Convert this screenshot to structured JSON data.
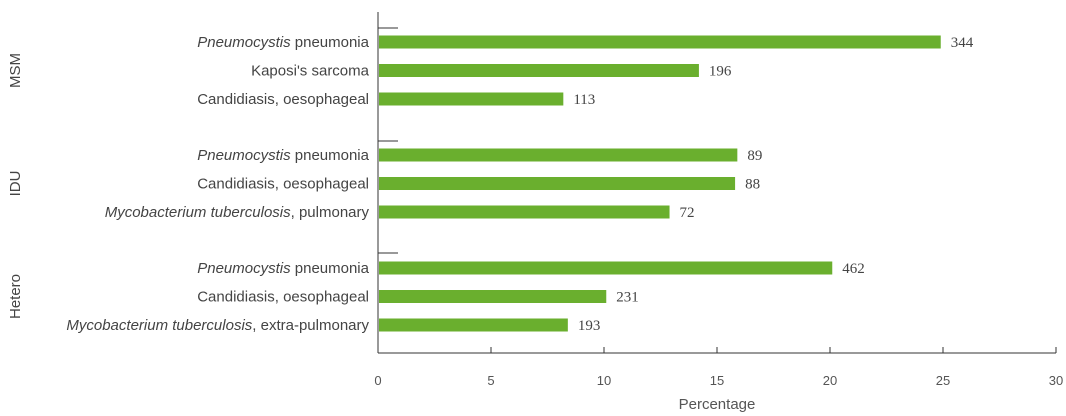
{
  "chart_data": {
    "type": "bar",
    "orientation": "horizontal",
    "xlabel": "Percentage",
    "xlim": [
      0,
      30
    ],
    "xticks": [
      0,
      5,
      10,
      15,
      20,
      25,
      30
    ],
    "bar_color": "#6aaf2e",
    "grid": false,
    "groups": [
      {
        "name": "MSM",
        "bars": [
          {
            "label_italic": "Pneumocystis",
            "label_rest": " pneumonia",
            "value": 24.9,
            "count": "344"
          },
          {
            "label_italic": "",
            "label_rest": "Kaposi's sarcoma",
            "value": 14.2,
            "count": "196"
          },
          {
            "label_italic": "",
            "label_rest": "Candidiasis, oesophageal",
            "value": 8.2,
            "count": "113"
          }
        ]
      },
      {
        "name": "IDU",
        "bars": [
          {
            "label_italic": "Pneumocystis",
            "label_rest": " pneumonia",
            "value": 15.9,
            "count": "89"
          },
          {
            "label_italic": "",
            "label_rest": "Candidiasis, oesophageal",
            "value": 15.8,
            "count": "88"
          },
          {
            "label_italic": "Mycobacterium tuberculosis",
            "label_rest": ", pulmonary",
            "value": 12.9,
            "count": "72"
          }
        ]
      },
      {
        "name": "Hetero",
        "bars": [
          {
            "label_italic": "Pneumocystis",
            "label_rest": " pneumonia",
            "value": 20.1,
            "count": "462"
          },
          {
            "label_italic": "",
            "label_rest": "Candidiasis, oesophageal",
            "value": 10.1,
            "count": "231"
          },
          {
            "label_italic": "Mycobacterium tuberculosis",
            "label_rest": ", extra-pulmonary",
            "value": 8.4,
            "count": "193"
          }
        ]
      }
    ]
  }
}
